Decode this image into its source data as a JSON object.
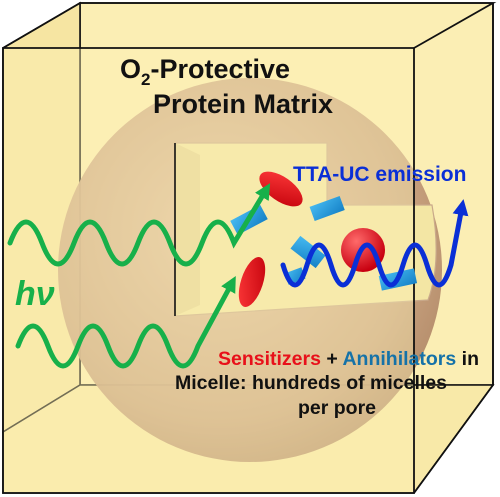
{
  "title": {
    "line1_main": "O",
    "line1_sub": "2",
    "line1_rest": "-Protective",
    "line2": "Protein Matrix"
  },
  "emission_label": "TTA-UC emission",
  "excitation_label": "hν",
  "caption": {
    "sensitizers": "Sensitizers",
    "plus": " + ",
    "annihilators": "Annihilators",
    "in": " in",
    "line2": "Micelle: hundreds of micelles",
    "line3": "per pore"
  },
  "colors": {
    "matrix_face": "#fdf0b6",
    "matrix_edge": "#111111",
    "sphere": "#c8a483",
    "micelle_interior": "#f2e6a6",
    "sensitizer": "#e8101a",
    "annihilator": "#1f9ee3",
    "excitation_wave": "#17b04a",
    "emission_wave": "#0a2fd6",
    "sensitizer_text": "#e8101a",
    "annihilator_text": "#1572a8",
    "emission_text": "#0a2fd6"
  }
}
